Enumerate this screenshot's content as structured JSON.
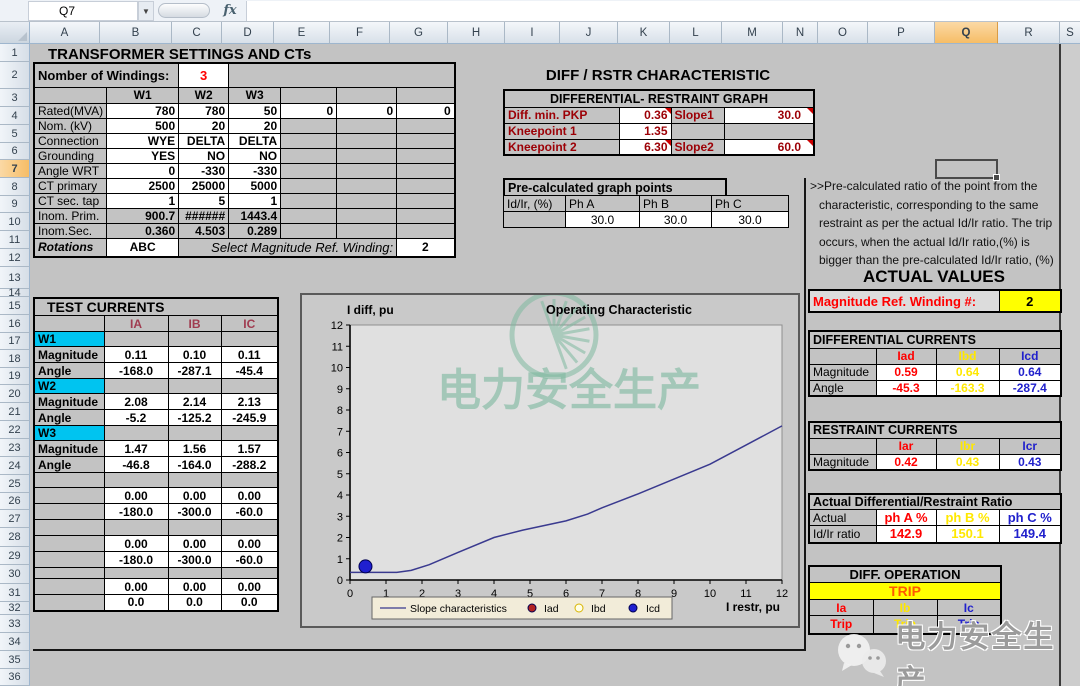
{
  "app": {
    "name_box": "Q7",
    "formula": "",
    "fx_label": "fx"
  },
  "grid": {
    "columns": [
      "A",
      "B",
      "C",
      "D",
      "E",
      "F",
      "G",
      "H",
      "I",
      "J",
      "K",
      "L",
      "M",
      "N",
      "O",
      "P",
      "Q",
      "R",
      "S"
    ],
    "selected_column": "Q",
    "first_row": 1,
    "last_row": 36,
    "selected_row": 7,
    "selected_cell": "Q7"
  },
  "colors": {
    "accent_red": "#ff0000",
    "accent_yellow": "#ffe800",
    "accent_blue": "#2121cc",
    "dark_red": "#9c0006",
    "cyan_fill": "#00c4f0",
    "trip_bg": "#ffff00",
    "trip_text": "#ff5a00",
    "watermark_green": "#7fb9a0"
  },
  "settings": {
    "title": "TRANSFORMER SETTINGS AND CTs",
    "windings_label": "Nomber of Windings:",
    "windings_value": "3",
    "winding_headers": [
      "W1",
      "W2",
      "W3"
    ],
    "rows": [
      {
        "label": "Rated(MVA)",
        "values": [
          "780",
          "780",
          "50"
        ],
        "extra": [
          "0",
          "0",
          "0"
        ],
        "calc": false
      },
      {
        "label": "Nom. (kV)",
        "values": [
          "500",
          "20",
          "20"
        ],
        "extra": [
          "",
          "",
          ""
        ],
        "calc": false
      },
      {
        "label": "Connection",
        "values": [
          "WYE",
          "DELTA",
          "DELTA"
        ],
        "extra": [
          "",
          "",
          ""
        ],
        "calc": false
      },
      {
        "label": "Grounding",
        "values": [
          "YES",
          "NO",
          "NO"
        ],
        "extra": [
          "",
          "",
          ""
        ],
        "calc": false
      },
      {
        "label": "Angle WRT",
        "values": [
          "0",
          "-330",
          "-330"
        ],
        "extra": [
          "",
          "",
          ""
        ],
        "calc": false
      },
      {
        "label": "CT primary",
        "values": [
          "2500",
          "25000",
          "5000"
        ],
        "extra": [
          "",
          "",
          ""
        ],
        "calc": false
      },
      {
        "label": "CT sec. tap",
        "values": [
          "1",
          "5",
          "1"
        ],
        "extra": [
          "",
          "",
          ""
        ],
        "calc": false
      },
      {
        "label": "Inom. Prim.",
        "values": [
          "900.7",
          "######",
          "1443.4"
        ],
        "extra": [
          "",
          "",
          ""
        ],
        "calc": true
      },
      {
        "label": "Inom.Sec.",
        "values": [
          "0.360",
          "4.503",
          "0.289"
        ],
        "extra": [
          "",
          "",
          ""
        ],
        "calc": true
      }
    ],
    "rotations_label": "Rotations",
    "rotations_value": "ABC",
    "ref_select_label": "Select Magnitude Ref. Winding:",
    "ref_select_value": "2"
  },
  "diff_rstr": {
    "title": "DIFF / RSTR  CHARACTERISTIC",
    "graph_header": "DIFFERENTIAL- RESTRAINT GRAPH",
    "rows": [
      {
        "label": "Diff. min. PKP",
        "value": "0.36",
        "flag": true,
        "label2": "Slope1",
        "value2": "30.0",
        "flag2": true
      },
      {
        "label": "Kneepoint 1",
        "value": "1.35",
        "flag": false,
        "label2": "",
        "value2": "",
        "flag2": false
      },
      {
        "label": "Kneepoint 2",
        "value": "6.30",
        "flag": true,
        "label2": "Slope2",
        "value2": "60.0",
        "flag2": true
      }
    ]
  },
  "precalc": {
    "title": "Pre-calculated graph points",
    "row_label": "Id/Ir, (%)",
    "phase_headers": [
      "Ph A",
      "Ph B",
      "Ph C"
    ],
    "values": [
      "30.0",
      "30.0",
      "30.0"
    ]
  },
  "note": ">>Pre-calculated ratio of the point from the characteristic, corresponding to the same restraint as per the actual Id/Ir ratio. The trip occurs, when the actual Id/Ir ratio,(%) is bigger than the pre-calculated Id/Ir ratio, (%)",
  "actual_values": {
    "title": "ACTUAL VALUES",
    "ref_label": "Magnitude Ref. Winding #:",
    "ref_value": "2",
    "differential": {
      "title": "DIFFERENTIAL CURRENTS",
      "headers": [
        "Iad",
        "Ibd",
        "Icd"
      ],
      "magnitude_label": "Magnitude",
      "magnitude": [
        "0.59",
        "0.64",
        "0.64"
      ],
      "angle_label": "Angle",
      "angle": [
        "-45.3",
        "-163.3",
        "-287.4"
      ]
    },
    "restraint": {
      "title": "RESTRAINT CURRENTS",
      "headers": [
        "Iar",
        "Ibr",
        "Icr"
      ],
      "magnitude_label": "Magnitude",
      "magnitude": [
        "0.42",
        "0.43",
        "0.43"
      ]
    },
    "ratio": {
      "title": "Actual Differential/Restraint Ratio",
      "row1_label": "Actual",
      "headers": [
        "ph A %",
        "ph B %",
        "ph C %"
      ],
      "row2_label": "Id/Ir ratio",
      "values": [
        "142.9",
        "150.1",
        "149.4"
      ]
    },
    "operation": {
      "title": "DIFF. OPERATION",
      "status": "TRIP",
      "phase_headers": [
        "Ia",
        "Ib",
        "Ic"
      ],
      "phase_status": [
        "Trip",
        "Trip",
        "Trip"
      ]
    }
  },
  "test_currents": {
    "title": "TEST CURRENTS",
    "col_headers": [
      "IA",
      "IB",
      "IC"
    ],
    "groups": [
      {
        "name": "W1",
        "magnitude_label": "Magnitude",
        "angle_label": "Angle",
        "magnitude": [
          "0.11",
          "0.10",
          "0.11"
        ],
        "angle": [
          "-168.0",
          "-287.1",
          "-45.4"
        ]
      },
      {
        "name": "W2",
        "magnitude_label": "Magnitude",
        "angle_label": "Angle",
        "magnitude": [
          "2.08",
          "2.14",
          "2.13"
        ],
        "angle": [
          "-5.2",
          "-125.2",
          "-245.9"
        ]
      },
      {
        "name": "W3",
        "magnitude_label": "Magnitude",
        "angle_label": "Angle",
        "magnitude": [
          "1.47",
          "1.56",
          "1.57"
        ],
        "angle": [
          "-46.8",
          "-164.0",
          "-288.2"
        ]
      }
    ],
    "extra_pairs": [
      {
        "magnitude": [
          "0.00",
          "0.00",
          "0.00"
        ],
        "angle": [
          "-180.0",
          "-300.0",
          "-60.0"
        ]
      },
      {
        "magnitude": [
          "0.00",
          "0.00",
          "0.00"
        ],
        "angle": [
          "-180.0",
          "-300.0",
          "-60.0"
        ]
      },
      {
        "magnitude": [
          "0.00",
          "0.00",
          "0.00"
        ],
        "angle": [
          "0.0",
          "0.0",
          "0.0"
        ]
      }
    ]
  },
  "chart_data": {
    "type": "line",
    "title": "Operating Characteristic",
    "ylabel": "I diff, pu",
    "xlabel": "I restr, pu",
    "xlim": [
      0,
      12
    ],
    "ylim": [
      0,
      12
    ],
    "xticks": [
      0,
      1,
      2,
      3,
      4,
      5,
      6,
      7,
      8,
      9,
      10,
      11,
      12
    ],
    "yticks": [
      0,
      1,
      2,
      3,
      4,
      5,
      6,
      7,
      8,
      9,
      10,
      11,
      12
    ],
    "grid": false,
    "legend_position": "bottom",
    "series": [
      {
        "name": "Slope characteristics",
        "type": "line",
        "color": "#3a3a8f",
        "points": [
          [
            0,
            0.36
          ],
          [
            1.3,
            0.36
          ],
          [
            1.7,
            0.45
          ],
          [
            2.2,
            0.72
          ],
          [
            3,
            1.3
          ],
          [
            4,
            2.0
          ],
          [
            4.8,
            2.35
          ],
          [
            6,
            2.78
          ],
          [
            6.6,
            3.1
          ],
          [
            7,
            3.4
          ],
          [
            8,
            4.05
          ],
          [
            9,
            4.75
          ],
          [
            10,
            5.45
          ],
          [
            11,
            6.35
          ],
          [
            12,
            7.25
          ]
        ]
      },
      {
        "name": "Iad",
        "type": "scatter",
        "color": "#b22222",
        "open": false,
        "r": 5,
        "points": [
          [
            0.42,
            0.59
          ]
        ]
      },
      {
        "name": "Ibd",
        "type": "scatter",
        "color": "#d8b400",
        "open": true,
        "r": 4,
        "points": [
          [
            0.43,
            0.64
          ]
        ]
      },
      {
        "name": "Icd",
        "type": "scatter",
        "color": "#1f1fd0",
        "open": false,
        "r": 6.5,
        "points": [
          [
            0.43,
            0.64
          ]
        ]
      }
    ]
  },
  "watermarks": {
    "chart_text": "电力安全生产",
    "bottom_text": "电力安全生产"
  }
}
